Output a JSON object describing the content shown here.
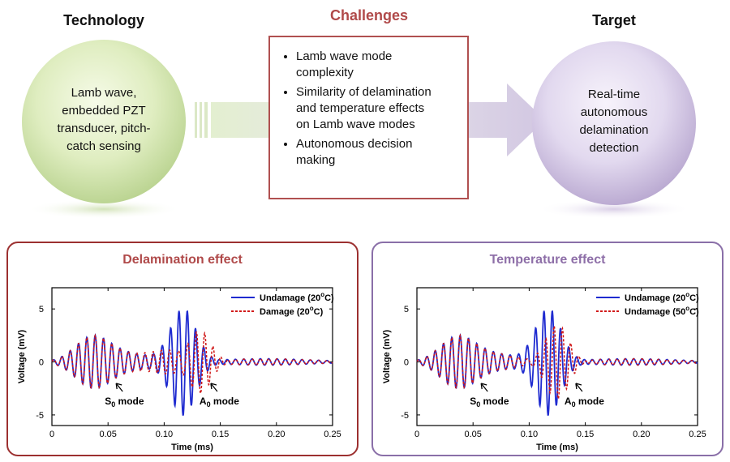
{
  "top": {
    "technology": {
      "heading": "Technology",
      "text": [
        "Lamb wave,",
        "embedded PZT",
        "transducer, pitch-",
        "catch sensing"
      ]
    },
    "challenges": {
      "heading": "Challenges",
      "items": [
        [
          "Lamb wave mode",
          "complexity"
        ],
        [
          "Similarity of delamination",
          "and temperature effects",
          "on Lamb wave modes"
        ],
        [
          "Autonomous decision",
          "making"
        ]
      ]
    },
    "target": {
      "heading": "Target",
      "text": [
        "Real-time",
        "autonomous",
        "delamination",
        "detection"
      ]
    }
  },
  "colors": {
    "technology_heading": "#111111",
    "challenges_heading": "#b04a4a",
    "delamination_heading": "#b04a4a",
    "temperature_heading": "#8e6fa8",
    "delamination_border": "#9c3030",
    "temperature_border": "#8a6fa8",
    "series_solid": "#1f2bd0",
    "series_dashed": "#d01818"
  },
  "chart_data": [
    {
      "type": "line",
      "title": "Delamination effect",
      "xlabel": "Time (ms)",
      "ylabel": "Voltage (mV)",
      "xlim": [
        0,
        0.25
      ],
      "ylim": [
        -6,
        7
      ],
      "xticks": [
        "0",
        "0.05",
        "0.10",
        "0.15",
        "0.20",
        "0.25"
      ],
      "yticks": [
        "5",
        "0",
        "-5"
      ],
      "legend": "top-right",
      "series": [
        {
          "name": "Undamage (20",
          "name_sup": "o",
          "name_end": "C)",
          "style": "solid",
          "wave": "undamage20"
        },
        {
          "name": "Damage (20",
          "name_sup": "o",
          "name_end": "C)",
          "style": "dashed",
          "wave": "damage20"
        }
      ],
      "annotations": [
        {
          "main": "S",
          "sub": "0",
          "rest": " mode",
          "x": 0.063
        },
        {
          "main": "A",
          "sub": "0",
          "rest": " mode",
          "x": 0.143
        }
      ]
    },
    {
      "type": "line",
      "title": "Temperature effect",
      "xlabel": "Time (ms)",
      "ylabel": "Voltage (mV)",
      "xlim": [
        0,
        0.25
      ],
      "ylim": [
        -6,
        7
      ],
      "xticks": [
        "0",
        "0.05",
        "0.10",
        "0.15",
        "0.20",
        "0.25"
      ],
      "yticks": [
        "5",
        "0",
        "-5"
      ],
      "legend": "top-right",
      "series": [
        {
          "name": "Undamage (20",
          "name_sup": "o",
          "name_end": "C)",
          "style": "solid",
          "wave": "undamage20"
        },
        {
          "name": "Undamage (50",
          "name_sup": "o",
          "name_end": "C)",
          "style": "dashed",
          "wave": "undamage50"
        }
      ],
      "annotations": [
        {
          "main": "S",
          "sub": "0",
          "rest": " mode",
          "x": 0.063
        },
        {
          "main": "A",
          "sub": "0",
          "rest": " mode",
          "x": 0.143
        }
      ]
    }
  ]
}
